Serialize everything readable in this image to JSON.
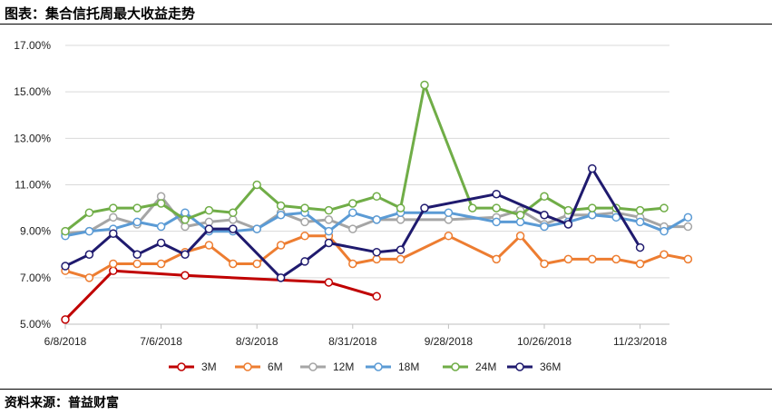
{
  "figure": {
    "title": "图表：集合信托周最大收益走势",
    "source": "资料来源：普益财富"
  },
  "chart_data": {
    "type": "line",
    "title": "",
    "xlabel": "",
    "ylabel": "",
    "ylim": [
      5.0,
      17.0
    ],
    "y_ticks": [
      "5.00%",
      "7.00%",
      "9.00%",
      "11.00%",
      "13.00%",
      "15.00%",
      "17.00%"
    ],
    "x_tick_labels": [
      "6/8/2018",
      "7/6/2018",
      "8/3/2018",
      "8/31/2018",
      "9/28/2018",
      "10/26/2018",
      "11/23/2018"
    ],
    "x_tick_index": [
      0,
      4,
      8,
      12,
      16,
      20,
      24
    ],
    "legend_position": "bottom",
    "grid": "horizontal",
    "series": [
      {
        "name": "3M",
        "color": "#C00000",
        "points": [
          [
            0,
            5.2
          ],
          [
            2,
            7.3
          ],
          [
            5,
            7.1
          ],
          [
            11,
            6.8
          ],
          [
            13,
            6.2
          ]
        ]
      },
      {
        "name": "6M",
        "color": "#ED7D31",
        "points": [
          [
            0,
            7.3
          ],
          [
            1,
            7.0
          ],
          [
            2,
            7.6
          ],
          [
            3,
            7.6
          ],
          [
            4,
            7.6
          ],
          [
            5,
            8.1
          ],
          [
            6,
            8.4
          ],
          [
            7,
            7.6
          ],
          [
            8,
            7.6
          ],
          [
            9,
            8.4
          ],
          [
            10,
            8.8
          ],
          [
            11,
            8.8
          ],
          [
            12,
            7.6
          ],
          [
            13,
            7.8
          ],
          [
            14,
            7.8
          ],
          [
            16,
            8.8
          ],
          [
            18,
            7.8
          ],
          [
            19,
            8.8
          ],
          [
            20,
            7.6
          ],
          [
            21,
            7.8
          ],
          [
            22,
            7.8
          ],
          [
            23,
            7.8
          ],
          [
            24,
            7.6
          ],
          [
            25,
            8.0
          ],
          [
            26,
            7.8
          ]
        ]
      },
      {
        "name": "12M",
        "color": "#A5A5A5",
        "points": [
          [
            0,
            8.9
          ],
          [
            1,
            9.0
          ],
          [
            2,
            9.6
          ],
          [
            3,
            9.3
          ],
          [
            4,
            10.5
          ],
          [
            5,
            9.2
          ],
          [
            6,
            9.4
          ],
          [
            7,
            9.5
          ],
          [
            8,
            9.1
          ],
          [
            9,
            9.8
          ],
          [
            10,
            9.4
          ],
          [
            11,
            9.5
          ],
          [
            12,
            9.1
          ],
          [
            13,
            9.5
          ],
          [
            14,
            9.5
          ],
          [
            16,
            9.5
          ],
          [
            18,
            9.6
          ],
          [
            19,
            9.9
          ],
          [
            20,
            9.3
          ],
          [
            21,
            9.7
          ],
          [
            22,
            9.7
          ],
          [
            23,
            9.8
          ],
          [
            24,
            9.6
          ],
          [
            25,
            9.2
          ],
          [
            26,
            9.2
          ]
        ]
      },
      {
        "name": "18M",
        "color": "#5B9BD5",
        "points": [
          [
            0,
            8.8
          ],
          [
            1,
            9.0
          ],
          [
            2,
            9.1
          ],
          [
            3,
            9.4
          ],
          [
            4,
            9.2
          ],
          [
            5,
            9.8
          ],
          [
            6,
            9.0
          ],
          [
            7,
            9.0
          ],
          [
            8,
            9.1
          ],
          [
            9,
            9.7
          ],
          [
            10,
            9.8
          ],
          [
            11,
            9.0
          ],
          [
            12,
            9.8
          ],
          [
            13,
            9.5
          ],
          [
            14,
            9.8
          ],
          [
            16,
            9.8
          ],
          [
            18,
            9.4
          ],
          [
            19,
            9.4
          ],
          [
            20,
            9.2
          ],
          [
            21,
            9.4
          ],
          [
            22,
            9.7
          ],
          [
            23,
            9.6
          ],
          [
            24,
            9.4
          ],
          [
            25,
            9.0
          ],
          [
            26,
            9.6
          ]
        ]
      },
      {
        "name": "24M",
        "color": "#70AD47",
        "points": [
          [
            0,
            9.0
          ],
          [
            1,
            9.8
          ],
          [
            2,
            10.0
          ],
          [
            3,
            10.0
          ],
          [
            4,
            10.2
          ],
          [
            5,
            9.5
          ],
          [
            6,
            9.9
          ],
          [
            7,
            9.8
          ],
          [
            8,
            11.0
          ],
          [
            9,
            10.1
          ],
          [
            10,
            10.0
          ],
          [
            11,
            9.9
          ],
          [
            12,
            10.2
          ],
          [
            13,
            10.5
          ],
          [
            14,
            10.0
          ],
          [
            15,
            15.3
          ],
          [
            17,
            10.0
          ],
          [
            18,
            10.0
          ],
          [
            19,
            9.7
          ],
          [
            20,
            10.5
          ],
          [
            21,
            9.9
          ],
          [
            22,
            10.0
          ],
          [
            23,
            10.0
          ],
          [
            24,
            9.9
          ],
          [
            25,
            10.0
          ]
        ]
      },
      {
        "name": "36M",
        "color": "#1F1A6E",
        "points": [
          [
            0,
            7.5
          ],
          [
            1,
            8.0
          ],
          [
            2,
            8.9
          ],
          [
            3,
            8.0
          ],
          [
            4,
            8.5
          ],
          [
            5,
            8.0
          ],
          [
            6,
            9.1
          ],
          [
            7,
            9.1
          ],
          [
            9,
            7.0
          ],
          [
            10,
            7.7
          ],
          [
            11,
            8.5
          ],
          [
            13,
            8.1
          ],
          [
            14,
            8.2
          ],
          [
            15,
            10.0
          ],
          [
            18,
            10.6
          ],
          [
            20,
            9.7
          ],
          [
            21,
            9.3
          ],
          [
            22,
            11.7
          ],
          [
            24,
            8.3
          ]
        ]
      }
    ]
  }
}
